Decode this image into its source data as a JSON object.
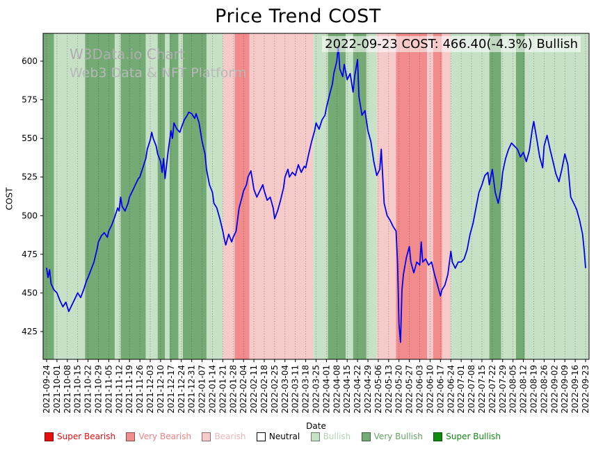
{
  "title": "Price Trend COST",
  "watermark": {
    "line1": "W3Data.io Chart",
    "line2": "Web3 Data & NFT Platform"
  },
  "annotation": "2022-09-23 COST: 466.40(-4.3%) Bullish",
  "legend": {
    "position": "bottom",
    "items": [
      {
        "label": "Super Bearish",
        "color": "#e60f0f",
        "text_color": "#e60f0f"
      },
      {
        "label": "Very Bearish",
        "color": "#f28b8b",
        "text_color": "#ef8282"
      },
      {
        "label": "Bearish",
        "color": "#f7caca",
        "text_color": "#f0b6b6"
      },
      {
        "label": "Neutral",
        "color": "#ffffff",
        "text_color": "#000000"
      },
      {
        "label": "Bullish",
        "color": "#c7e1c7",
        "text_color": "#b3d5b3"
      },
      {
        "label": "Very Bullish",
        "color": "#74aa74",
        "text_color": "#66a166"
      },
      {
        "label": "Super Bullish",
        "color": "#0f8a0f",
        "text_color": "#128a12"
      }
    ]
  },
  "chart_data": {
    "type": "line",
    "title": "Price Trend COST",
    "xlabel": "Date",
    "ylabel": "COST",
    "line_color": "#0000ee",
    "grid": "vertical-dotted",
    "ylim": [
      407,
      618
    ],
    "y_ticks": [
      425,
      450,
      475,
      500,
      525,
      550,
      575,
      600
    ],
    "x_tick_interval_days": 7,
    "x_tick_labels": [
      "2021-09-24",
      "2021-10-01",
      "2021-10-08",
      "2021-10-15",
      "2021-10-22",
      "2021-10-29",
      "2021-11-05",
      "2021-11-12",
      "2021-11-19",
      "2021-11-26",
      "2021-12-03",
      "2021-12-10",
      "2021-12-17",
      "2021-12-24",
      "2021-12-31",
      "2022-01-07",
      "2022-01-14",
      "2022-01-21",
      "2022-01-28",
      "2022-02-04",
      "2022-02-11",
      "2022-02-18",
      "2022-02-25",
      "2022-03-04",
      "2022-03-11",
      "2022-03-18",
      "2022-03-25",
      "2022-04-01",
      "2022-04-08",
      "2022-04-15",
      "2022-04-22",
      "2022-04-29",
      "2022-05-06",
      "2022-05-13",
      "2022-05-20",
      "2022-05-27",
      "2022-06-03",
      "2022-06-10",
      "2022-06-17",
      "2022-06-24",
      "2022-07-01",
      "2022-07-08",
      "2022-07-15",
      "2022-07-22",
      "2022-07-29",
      "2022-08-05",
      "2022-08-12",
      "2022-08-19",
      "2022-08-26",
      "2022-09-02",
      "2022-09-09",
      "2022-09-16",
      "2022-09-23"
    ],
    "band_colors": {
      "super_bearish": "#e60f0f",
      "very_bearish": "#f28b8b",
      "bearish": "#f7caca",
      "neutral": "#ffffff",
      "bullish": "#c7e1c7",
      "very_bullish": "#74aa74",
      "super_bullish": "#0f8a0f"
    },
    "bands": [
      {
        "start_day": 0,
        "end_day": 5,
        "sentiment": "very_bullish"
      },
      {
        "start_day": 5,
        "end_day": 26,
        "sentiment": "bullish"
      },
      {
        "start_day": 26,
        "end_day": 46,
        "sentiment": "very_bullish"
      },
      {
        "start_day": 46,
        "end_day": 50,
        "sentiment": "bullish"
      },
      {
        "start_day": 50,
        "end_day": 67,
        "sentiment": "very_bullish"
      },
      {
        "start_day": 67,
        "end_day": 75,
        "sentiment": "bullish"
      },
      {
        "start_day": 75,
        "end_day": 80,
        "sentiment": "very_bullish"
      },
      {
        "start_day": 80,
        "end_day": 83,
        "sentiment": "bullish"
      },
      {
        "start_day": 83,
        "end_day": 89,
        "sentiment": "very_bullish"
      },
      {
        "start_day": 89,
        "end_day": 92,
        "sentiment": "bullish"
      },
      {
        "start_day": 92,
        "end_day": 108,
        "sentiment": "very_bullish"
      },
      {
        "start_day": 108,
        "end_day": 119,
        "sentiment": "bullish"
      },
      {
        "start_day": 119,
        "end_day": 127,
        "sentiment": "bearish"
      },
      {
        "start_day": 127,
        "end_day": 137,
        "sentiment": "very_bearish"
      },
      {
        "start_day": 137,
        "end_day": 180,
        "sentiment": "bearish"
      },
      {
        "start_day": 180,
        "end_day": 190,
        "sentiment": "bullish"
      },
      {
        "start_day": 190,
        "end_day": 202,
        "sentiment": "very_bullish"
      },
      {
        "start_day": 202,
        "end_day": 207,
        "sentiment": "bullish"
      },
      {
        "start_day": 207,
        "end_day": 216,
        "sentiment": "very_bullish"
      },
      {
        "start_day": 216,
        "end_day": 223,
        "sentiment": "bullish"
      },
      {
        "start_day": 223,
        "end_day": 236,
        "sentiment": "bearish"
      },
      {
        "start_day": 236,
        "end_day": 257,
        "sentiment": "very_bearish"
      },
      {
        "start_day": 257,
        "end_day": 261,
        "sentiment": "bearish"
      },
      {
        "start_day": 261,
        "end_day": 267,
        "sentiment": "very_bearish"
      },
      {
        "start_day": 267,
        "end_day": 273,
        "sentiment": "bearish"
      },
      {
        "start_day": 273,
        "end_day": 299,
        "sentiment": "bullish"
      },
      {
        "start_day": 299,
        "end_day": 307,
        "sentiment": "very_bullish"
      },
      {
        "start_day": 307,
        "end_day": 317,
        "sentiment": "bullish"
      },
      {
        "start_day": 317,
        "end_day": 323,
        "sentiment": "very_bullish"
      },
      {
        "start_day": 323,
        "end_day": 364,
        "sentiment": "bullish"
      }
    ],
    "series": [
      {
        "name": "COST",
        "points": [
          [
            0,
            466
          ],
          [
            1,
            460
          ],
          [
            2,
            465
          ],
          [
            3,
            456
          ],
          [
            5,
            452
          ],
          [
            7,
            450
          ],
          [
            9,
            445
          ],
          [
            11,
            441
          ],
          [
            13,
            444
          ],
          [
            15,
            438
          ],
          [
            17,
            442
          ],
          [
            19,
            446
          ],
          [
            21,
            450
          ],
          [
            23,
            447
          ],
          [
            25,
            452
          ],
          [
            27,
            458
          ],
          [
            28,
            460
          ],
          [
            30,
            465
          ],
          [
            32,
            470
          ],
          [
            34,
            478
          ],
          [
            35,
            483
          ],
          [
            37,
            487
          ],
          [
            39,
            489
          ],
          [
            41,
            486
          ],
          [
            42,
            490
          ],
          [
            44,
            494
          ],
          [
            46,
            499
          ],
          [
            48,
            505
          ],
          [
            49,
            503
          ],
          [
            50,
            512
          ],
          [
            51,
            506
          ],
          [
            53,
            503
          ],
          [
            55,
            508
          ],
          [
            56,
            512
          ],
          [
            58,
            516
          ],
          [
            60,
            520
          ],
          [
            62,
            524
          ],
          [
            63,
            525
          ],
          [
            65,
            531
          ],
          [
            67,
            537
          ],
          [
            68,
            543
          ],
          [
            70,
            549
          ],
          [
            71,
            554
          ],
          [
            72,
            550
          ],
          [
            74,
            545
          ],
          [
            75,
            540
          ],
          [
            77,
            535
          ],
          [
            78,
            528
          ],
          [
            79,
            537
          ],
          [
            80,
            524
          ],
          [
            82,
            541
          ],
          [
            84,
            555
          ],
          [
            85,
            550
          ],
          [
            86,
            560
          ],
          [
            88,
            556
          ],
          [
            90,
            554
          ],
          [
            91,
            557
          ],
          [
            93,
            562
          ],
          [
            95,
            565
          ],
          [
            96,
            567
          ],
          [
            98,
            566
          ],
          [
            100,
            563
          ],
          [
            101,
            566
          ],
          [
            103,
            560
          ],
          [
            105,
            548
          ],
          [
            107,
            540
          ],
          [
            108,
            530
          ],
          [
            110,
            520
          ],
          [
            112,
            515
          ],
          [
            113,
            508
          ],
          [
            115,
            505
          ],
          [
            117,
            498
          ],
          [
            119,
            490
          ],
          [
            120,
            485
          ],
          [
            121,
            481
          ],
          [
            123,
            488
          ],
          [
            125,
            483
          ],
          [
            126,
            486
          ],
          [
            128,
            490
          ],
          [
            130,
            505
          ],
          [
            132,
            512
          ],
          [
            133,
            516
          ],
          [
            135,
            520
          ],
          [
            136,
            525
          ],
          [
            138,
            529
          ],
          [
            140,
            517
          ],
          [
            142,
            512
          ],
          [
            144,
            516
          ],
          [
            146,
            520
          ],
          [
            147,
            516
          ],
          [
            149,
            510
          ],
          [
            151,
            512
          ],
          [
            153,
            505
          ],
          [
            154,
            498
          ],
          [
            156,
            503
          ],
          [
            158,
            510
          ],
          [
            160,
            518
          ],
          [
            161,
            525
          ],
          [
            163,
            530
          ],
          [
            164,
            525
          ],
          [
            166,
            528
          ],
          [
            168,
            526
          ],
          [
            170,
            533
          ],
          [
            172,
            528
          ],
          [
            174,
            532
          ],
          [
            175,
            531
          ],
          [
            177,
            540
          ],
          [
            179,
            548
          ],
          [
            181,
            555
          ],
          [
            182,
            560
          ],
          [
            184,
            556
          ],
          [
            186,
            562
          ],
          [
            188,
            565
          ],
          [
            189,
            570
          ],
          [
            191,
            578
          ],
          [
            193,
            585
          ],
          [
            194,
            592
          ],
          [
            196,
            600
          ],
          [
            197,
            610
          ],
          [
            198,
            595
          ],
          [
            200,
            590
          ],
          [
            201,
            598
          ],
          [
            203,
            588
          ],
          [
            205,
            592
          ],
          [
            207,
            580
          ],
          [
            208,
            590
          ],
          [
            210,
            601
          ],
          [
            211,
            577
          ],
          [
            213,
            565
          ],
          [
            215,
            568
          ],
          [
            217,
            555
          ],
          [
            219,
            548
          ],
          [
            221,
            535
          ],
          [
            223,
            526
          ],
          [
            225,
            530
          ],
          [
            226,
            543
          ],
          [
            228,
            508
          ],
          [
            230,
            500
          ],
          [
            232,
            497
          ],
          [
            234,
            493
          ],
          [
            236,
            490
          ],
          [
            237,
            470
          ],
          [
            238,
            430
          ],
          [
            239,
            418
          ],
          [
            240,
            452
          ],
          [
            241,
            462
          ],
          [
            243,
            473
          ],
          [
            245,
            480
          ],
          [
            246,
            470
          ],
          [
            248,
            463
          ],
          [
            250,
            470
          ],
          [
            252,
            468
          ],
          [
            253,
            483
          ],
          [
            254,
            470
          ],
          [
            256,
            472
          ],
          [
            258,
            468
          ],
          [
            260,
            470
          ],
          [
            262,
            462
          ],
          [
            264,
            455
          ],
          [
            266,
            448
          ],
          [
            267,
            452
          ],
          [
            269,
            455
          ],
          [
            271,
            462
          ],
          [
            273,
            477
          ],
          [
            274,
            470
          ],
          [
            276,
            466
          ],
          [
            278,
            470
          ],
          [
            280,
            470
          ],
          [
            282,
            472
          ],
          [
            284,
            478
          ],
          [
            286,
            488
          ],
          [
            288,
            495
          ],
          [
            290,
            505
          ],
          [
            292,
            515
          ],
          [
            294,
            520
          ],
          [
            296,
            526
          ],
          [
            298,
            528
          ],
          [
            299,
            520
          ],
          [
            301,
            530
          ],
          [
            303,
            515
          ],
          [
            305,
            508
          ],
          [
            307,
            518
          ],
          [
            308,
            528
          ],
          [
            310,
            537
          ],
          [
            312,
            543
          ],
          [
            314,
            547
          ],
          [
            316,
            545
          ],
          [
            318,
            543
          ],
          [
            320,
            538
          ],
          [
            322,
            541
          ],
          [
            324,
            535
          ],
          [
            326,
            542
          ],
          [
            328,
            556
          ],
          [
            329,
            561
          ],
          [
            331,
            550
          ],
          [
            333,
            538
          ],
          [
            335,
            531
          ],
          [
            336,
            545
          ],
          [
            338,
            552
          ],
          [
            340,
            543
          ],
          [
            342,
            535
          ],
          [
            344,
            527
          ],
          [
            346,
            522
          ],
          [
            348,
            530
          ],
          [
            350,
            540
          ],
          [
            352,
            533
          ],
          [
            354,
            512
          ],
          [
            356,
            508
          ],
          [
            358,
            504
          ],
          [
            360,
            497
          ],
          [
            362,
            488
          ],
          [
            363,
            478
          ],
          [
            364,
            466.4
          ]
        ]
      }
    ]
  }
}
